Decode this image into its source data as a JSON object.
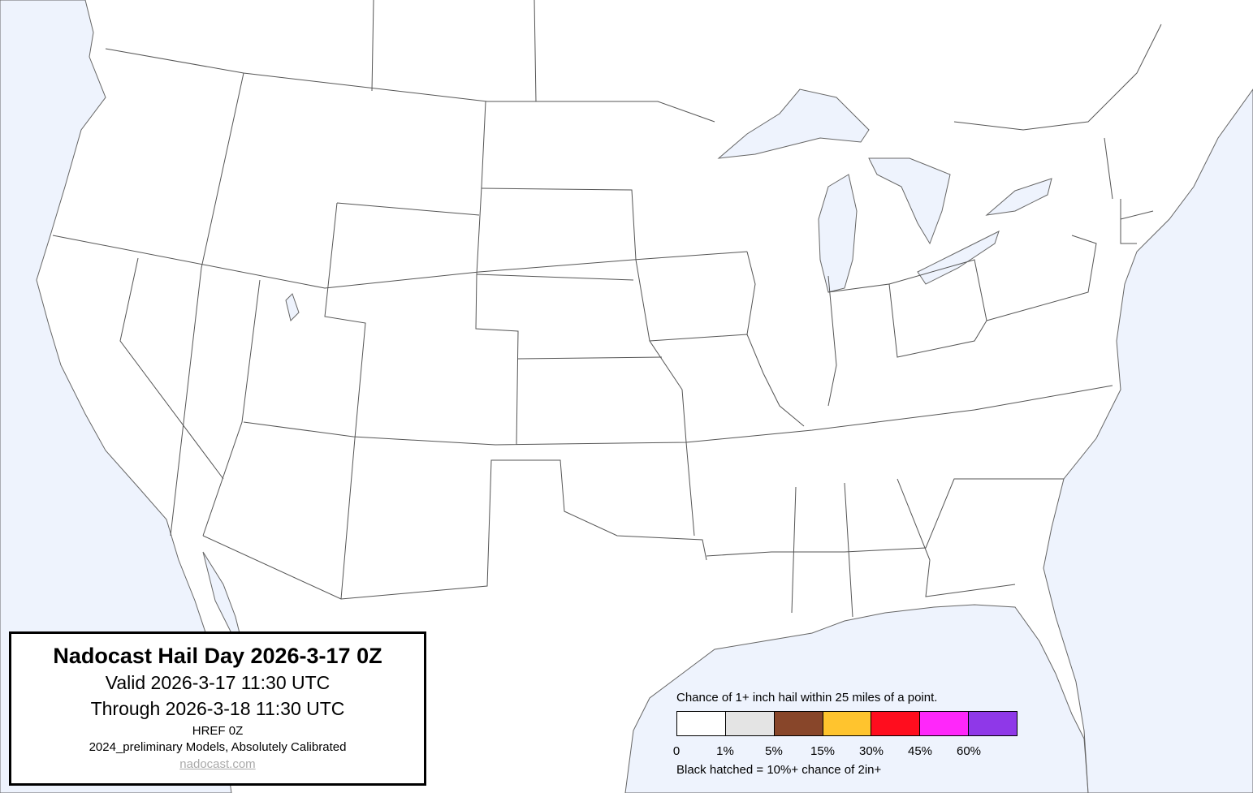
{
  "title_box": {
    "title": "Nadocast Hail Day 2026-3-17 0Z",
    "valid": "Valid 2026-3-17 11:30 UTC",
    "through": "Through 2026-3-18 11:30 UTC",
    "model": "HREF 0Z",
    "models_note": "2024_preliminary Models, Absolutely Calibrated",
    "link": "nadocast.com"
  },
  "legend": {
    "title": "Chance of 1+ inch hail within 25 miles of a point.",
    "bins": [
      {
        "label": "0",
        "color": "#ffffff"
      },
      {
        "label": "1%",
        "color": "#e4e4e4"
      },
      {
        "label": "5%",
        "color": "#88462a"
      },
      {
        "label": "15%",
        "color": "#ffc42e"
      },
      {
        "label": "30%",
        "color": "#ff0d1e"
      },
      {
        "label": "45%",
        "color": "#ff27fa"
      },
      {
        "label": "60%",
        "color": "#8f38e8"
      }
    ],
    "note": "Black hatched = 10%+ chance of 2in+"
  },
  "colors": {
    "water": "#eef3fd",
    "land": "#ffffff",
    "borders": "#555555"
  }
}
